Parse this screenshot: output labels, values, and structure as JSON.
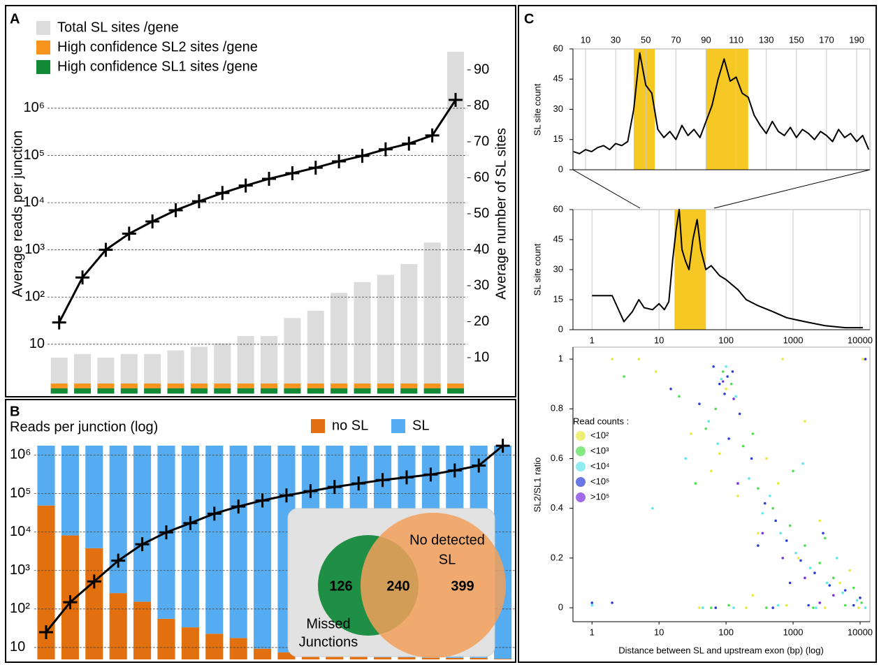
{
  "chart_data": [
    {
      "type": "bar_line",
      "panel_label": "A",
      "y_label": "Average reads per junction",
      "y2_label": "Average number of SL sites",
      "yscale": "log",
      "ylim": [
        0.9,
        37600000
      ],
      "yticks": [
        10,
        {
          "value": 100,
          "label": "10²"
        },
        {
          "value": 1000,
          "label": "10³"
        },
        {
          "value": 10000,
          "label": "10⁴"
        },
        {
          "value": 100000,
          "label": "10⁵"
        },
        {
          "value": 1000000,
          "label": "10⁶"
        }
      ],
      "y2lim": [
        0,
        100
      ],
      "y2ticks": [
        10,
        20,
        30,
        40,
        50,
        60,
        70,
        80,
        90
      ],
      "grid": true,
      "legend": "upper left",
      "series": [
        {
          "name": "Total SL sites /gene",
          "color": "#dcdcdc",
          "axis": "y2",
          "values": [
            10,
            11,
            10,
            11,
            11,
            12,
            13,
            14,
            16,
            16,
            21,
            23,
            28,
            31,
            33,
            36,
            42,
            95
          ]
        },
        {
          "name": "High confidence SL2 sites /gene",
          "color": "#f7941d",
          "axis": "y2",
          "values": [
            1.3,
            1.3,
            1.3,
            1.3,
            1.3,
            1.3,
            1.3,
            1.3,
            1.3,
            1.3,
            1.3,
            1.3,
            1.3,
            1.3,
            1.3,
            1.3,
            1.3,
            1.3
          ]
        },
        {
          "name": "High confidence SL1 sites /gene",
          "color": "#138a36",
          "axis": "y2",
          "values": [
            1.5,
            1.5,
            1.5,
            1.5,
            1.5,
            1.5,
            1.5,
            1.5,
            1.5,
            1.5,
            1.5,
            1.5,
            1.5,
            1.5,
            1.5,
            1.5,
            1.5,
            1.5
          ]
        },
        {
          "type": "line",
          "color": "#000000",
          "values": [
            29,
            260,
            1000,
            2200,
            4000,
            6900,
            10700,
            16000,
            23000,
            32000,
            42000,
            55000,
            75000,
            98000,
            135000,
            178000,
            265000,
            1500000
          ]
        }
      ]
    },
    {
      "type": "stacked_bar_line",
      "panel_label": "B",
      "title": "Reads per junction (log)",
      "yscale": "log",
      "ylim": [
        4.9,
        1750000
      ],
      "yticks": [
        10,
        {
          "value": 100,
          "label": "10²"
        },
        {
          "value": 1000,
          "label": "10³"
        },
        {
          "value": 10000,
          "label": "10⁴"
        },
        {
          "value": 100000,
          "label": "10⁵"
        },
        {
          "value": 1000000,
          "label": "10⁶"
        }
      ],
      "y2lim": [
        0,
        100
      ],
      "grid": true,
      "legend": "upper right",
      "series": [
        {
          "name": "no SL",
          "color": "#e3700f",
          "axis": "y2",
          "values": [
            72,
            58,
            52,
            31,
            27,
            19,
            15,
            12,
            10,
            5,
            3.3,
            2.6,
            2,
            1.3,
            1,
            1,
            0.7,
            0.7,
            0.7,
            0.3
          ]
        },
        {
          "name": "SL",
          "color": "#56acf0",
          "axis": "y2",
          "values": [
            28,
            42,
            48,
            69,
            73,
            81,
            85,
            88,
            90,
            95,
            96.7,
            97.4,
            98,
            98.7,
            99,
            99,
            99.3,
            99.3,
            99.3,
            99.7
          ]
        },
        {
          "type": "line",
          "color": "#000000",
          "values": [
            25,
            150,
            520,
            1800,
            4800,
            9800,
            17000,
            30000,
            46000,
            66000,
            89000,
            115000,
            148000,
            182000,
            224000,
            263000,
            310000,
            398000,
            532000,
            1740000
          ]
        }
      ],
      "inset": {
        "left_only": "126",
        "both": "240",
        "right_only": "399",
        "left_label": [
          "Missed",
          "Junctions"
        ],
        "right_label": [
          "No detected",
          "SL"
        ]
      }
    },
    {
      "type": "line",
      "panel_label": "C",
      "y_label": "SL site count",
      "xaxis": "top",
      "xlim": [
        1.65,
        198.8
      ],
      "xticks": [
        10,
        30,
        50,
        70,
        90,
        110,
        130,
        150,
        170,
        190
      ],
      "ylim": [
        0,
        60
      ],
      "yticks": [
        0,
        15,
        30,
        45,
        60
      ],
      "grid": true,
      "highlights": [
        [
          42,
          56
        ],
        [
          90,
          118
        ]
      ],
      "highlight_color": "#f6c823",
      "x": [
        2,
        6,
        10,
        14,
        18,
        22,
        26,
        30,
        34,
        38,
        42,
        46,
        50,
        54,
        58,
        62,
        66,
        70,
        74,
        78,
        82,
        86,
        90,
        94,
        98,
        102,
        106,
        110,
        114,
        118,
        122,
        126,
        130,
        134,
        138,
        142,
        146,
        150,
        154,
        158,
        162,
        166,
        170,
        174,
        178,
        182,
        186,
        190,
        194,
        198
      ],
      "series": [
        {
          "color": "#000000",
          "values": [
            9,
            8,
            10,
            9,
            11,
            12,
            10,
            13,
            12,
            14,
            30,
            58,
            42,
            38,
            20,
            16,
            19,
            15,
            22,
            17,
            20,
            16,
            24,
            32,
            45,
            55,
            44,
            46,
            38,
            36,
            27,
            22,
            18,
            24,
            19,
            17,
            21,
            16,
            20,
            18,
            15,
            19,
            17,
            14,
            20,
            16,
            18,
            14,
            17,
            10
          ]
        }
      ]
    },
    {
      "type": "line",
      "y_label": "SL site count",
      "xaxis": "bottom",
      "xscale": "log",
      "xlim": [
        0.52,
        14000
      ],
      "xticks": [
        1,
        10,
        100,
        1000,
        10000
      ],
      "ylim": [
        0,
        60
      ],
      "yticks": [
        0,
        15,
        30,
        45,
        60
      ],
      "grid": true,
      "highlights": [
        [
          17,
          50
        ]
      ],
      "highlight_color": "#f6c823",
      "x": [
        1,
        2,
        3,
        4,
        5,
        6,
        8,
        10,
        12,
        14,
        16,
        18,
        20,
        22,
        25,
        28,
        32,
        37,
        42,
        50,
        60,
        80,
        100,
        150,
        200,
        300,
        500,
        800,
        1500,
        3000,
        6000,
        11000
      ],
      "series": [
        {
          "color": "#000000",
          "values": [
            17,
            17,
            4,
            9,
            15,
            11,
            10,
            13,
            10,
            14,
            35,
            50,
            60,
            40,
            34,
            30,
            45,
            55,
            40,
            30,
            32,
            27,
            25,
            20,
            15,
            12,
            9,
            6,
            4,
            2,
            1,
            1
          ]
        }
      ]
    },
    {
      "type": "scatter",
      "y_label": "SL2/SL1 ratio",
      "x_label": "Distance between SL and upstream exon (bp) (log)",
      "legend_title": "Read counts :",
      "legend": "center left",
      "xscale": "log",
      "xlim": [
        0.52,
        14000
      ],
      "xticks": [
        1,
        10,
        100,
        1000,
        10000
      ],
      "ylim": [
        -0.056,
        1.048
      ],
      "yticks": [
        0,
        0.2,
        0.4,
        0.6,
        0.8,
        1
      ],
      "series": [
        {
          "name": "<10²",
          "color": "#e8e83a",
          "x": [
            2,
            5,
            30,
            60,
            80,
            150,
            300,
            600,
            1200,
            2500,
            5000,
            11000,
            40,
            200,
            800,
            3000,
            9500,
            9,
            100,
            400,
            1500,
            7000,
            250,
            700
          ],
          "values": [
            1,
            1,
            0.7,
            0.55,
            0.62,
            0.45,
            0.3,
            0.5,
            0.2,
            0.35,
            0.1,
            1,
            0,
            0,
            0.01,
            0,
            0,
            0.95,
            0.88,
            0.6,
            0.75,
            0.15,
            0.05,
            1
          ]
        },
        {
          "name": "<10³",
          "color": "#4ee04a",
          "x": [
            3,
            20,
            50,
            70,
            90,
            120,
            180,
            300,
            500,
            900,
            1500,
            2500,
            4000,
            8000,
            10500,
            60,
            110,
            400,
            2000,
            6000,
            35,
            250,
            1000,
            3000
          ],
          "values": [
            0.93,
            0.85,
            0.72,
            0.8,
            0.95,
            0.9,
            0.65,
            0.48,
            0.4,
            0.33,
            0.25,
            0.18,
            0.12,
            0.08,
            0.02,
            0,
            0.01,
            0,
            0,
            0.01,
            0.5,
            0.7,
            0.55,
            0.28
          ]
        },
        {
          "name": "<10⁴",
          "color": "#5fe6ea",
          "x": [
            1,
            8,
            25,
            55,
            85,
            100,
            140,
            220,
            350,
            650,
            1100,
            1800,
            3200,
            5500,
            9000,
            45,
            130,
            600,
            2200,
            12000,
            75,
            450,
            1400,
            4500
          ],
          "values": [
            0.01,
            0.4,
            0.6,
            0.75,
            0.92,
            0.97,
            0.85,
            0.52,
            0.38,
            0.3,
            0.22,
            0.16,
            0.1,
            0.06,
            0.03,
            0,
            0,
            0.01,
            0,
            0,
            0.66,
            0.45,
            0.58,
            0.2
          ]
        },
        {
          "name": "<10⁵",
          "color": "#2b3fd8",
          "x": [
            1,
            2,
            15,
            40,
            65,
            80,
            95,
            105,
            125,
            160,
            240,
            380,
            550,
            800,
            1300,
            2100,
            3500,
            6000,
            10000,
            12000,
            70,
            500,
            1700,
            8000,
            110,
            300,
            900,
            2800
          ],
          "values": [
            0.02,
            0.02,
            0.88,
            0.82,
            0.97,
            0.9,
            0.86,
            0.93,
            0.95,
            0.78,
            0.6,
            0.42,
            0.35,
            0.27,
            0.19,
            0.14,
            0.09,
            0.07,
            0.04,
            1,
            0,
            0,
            0.01,
            0.01,
            0.68,
            0.25,
            0.1,
            0.3
          ]
        },
        {
          "name": ">10⁵",
          "color": "#7a2ee0",
          "x": [
            90,
            130,
            350,
            700,
            1500,
            4000,
            150,
            2500
          ],
          "values": [
            0.91,
            0.84,
            0.3,
            0.2,
            0.12,
            0.05,
            0.5,
            0.02
          ]
        }
      ]
    }
  ]
}
